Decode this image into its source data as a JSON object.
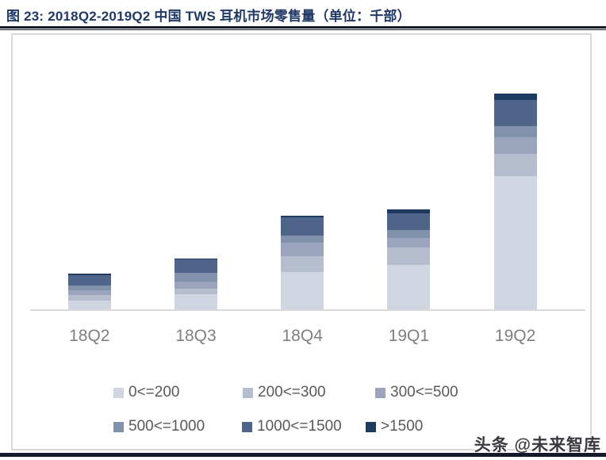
{
  "header": {
    "title": "图 23:  2018Q2-2019Q2 中国 TWS 耳机市场零售量（单位：千部）",
    "title_color": "#1f3864"
  },
  "watermark": {
    "text": "头条 @未来智库"
  },
  "chart_data": {
    "type": "bar",
    "stacked": true,
    "title": "2018Q2-2019Q2 中国 TWS 耳机市场零售量",
    "unit_label": "千部",
    "categories": [
      "18Q2",
      "18Q3",
      "18Q4",
      "19Q1",
      "19Q2"
    ],
    "series": [
      {
        "name": "0<=200",
        "color": "#cfd5e1",
        "values": [
          135,
          210,
          490,
          585,
          1700
        ]
      },
      {
        "name": "200<=300",
        "color": "#b5bdce",
        "values": [
          65,
          75,
          200,
          220,
          285
        ]
      },
      {
        "name": "300<=500",
        "color": "#9aa5bd",
        "values": [
          60,
          90,
          175,
          115,
          205
        ]
      },
      {
        "name": "500<=1000",
        "color": "#8191ac",
        "values": [
          60,
          110,
          90,
          100,
          145
        ]
      },
      {
        "name": "1000<=1500",
        "color": "#4f6489",
        "values": [
          135,
          170,
          225,
          215,
          325
        ]
      },
      {
        "name": ">1500",
        "color": "#1e3a61",
        "values": [
          15,
          5,
          20,
          45,
          80
        ]
      }
    ],
    "totals_estimated": [
      470,
      660,
      1200,
      1280,
      2740
    ],
    "xlabel": "",
    "ylabel": "",
    "y_axis_visible": false,
    "grid": false,
    "legend_position": "bottom"
  }
}
